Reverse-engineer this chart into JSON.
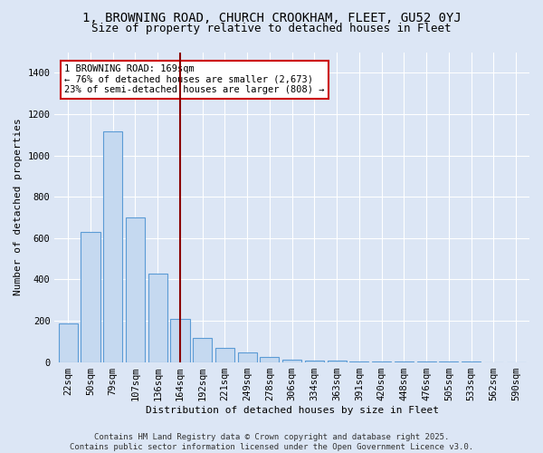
{
  "title_line1": "1, BROWNING ROAD, CHURCH CROOKHAM, FLEET, GU52 0YJ",
  "title_line2": "Size of property relative to detached houses in Fleet",
  "xlabel": "Distribution of detached houses by size in Fleet",
  "ylabel": "Number of detached properties",
  "categories": [
    "22sqm",
    "50sqm",
    "79sqm",
    "107sqm",
    "136sqm",
    "164sqm",
    "192sqm",
    "221sqm",
    "249sqm",
    "278sqm",
    "306sqm",
    "334sqm",
    "363sqm",
    "391sqm",
    "420sqm",
    "448sqm",
    "476sqm",
    "505sqm",
    "533sqm",
    "562sqm",
    "590sqm"
  ],
  "values": [
    185,
    630,
    1115,
    700,
    430,
    210,
    115,
    70,
    45,
    25,
    12,
    8,
    5,
    3,
    2,
    2,
    1,
    1,
    1,
    0,
    0
  ],
  "bar_color": "#c5d9f0",
  "bar_edge_color": "#5b9bd5",
  "vline_x": 5.0,
  "vline_color": "#8b0000",
  "annotation_title": "1 BROWNING ROAD: 169sqm",
  "annotation_line1": "← 76% of detached houses are smaller (2,673)",
  "annotation_line2": "23% of semi-detached houses are larger (808) →",
  "background_color": "#dce6f5",
  "plot_bg_color": "#dce6f5",
  "ylim": [
    0,
    1500
  ],
  "yticks": [
    0,
    200,
    400,
    600,
    800,
    1000,
    1200,
    1400
  ],
  "footer_line1": "Contains HM Land Registry data © Crown copyright and database right 2025.",
  "footer_line2": "Contains public sector information licensed under the Open Government Licence v3.0.",
  "title_fontsize": 10,
  "subtitle_fontsize": 9,
  "axis_label_fontsize": 8,
  "tick_fontsize": 7.5,
  "footer_fontsize": 6.5
}
